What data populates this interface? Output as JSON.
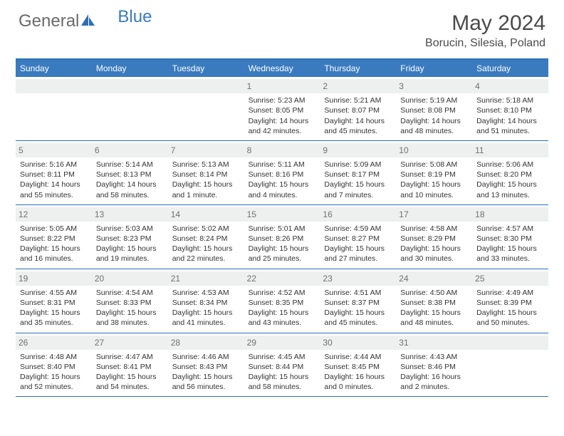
{
  "brand": {
    "part1": "General",
    "part2": "Blue"
  },
  "title": "May 2024",
  "location": "Borucin, Silesia, Poland",
  "colors": {
    "header_bg": "#3a7bbf",
    "rule": "#2d6fb6",
    "daynum_bg": "#eef0f0",
    "text": "#333333",
    "title_text": "#4a4a4a"
  },
  "dow": [
    "Sunday",
    "Monday",
    "Tuesday",
    "Wednesday",
    "Thursday",
    "Friday",
    "Saturday"
  ],
  "weeks": [
    [
      {
        "n": "",
        "sr": "",
        "ss": "",
        "dl": ""
      },
      {
        "n": "",
        "sr": "",
        "ss": "",
        "dl": ""
      },
      {
        "n": "",
        "sr": "",
        "ss": "",
        "dl": ""
      },
      {
        "n": "1",
        "sr": "5:23 AM",
        "ss": "8:05 PM",
        "dl": "14 hours and 42 minutes."
      },
      {
        "n": "2",
        "sr": "5:21 AM",
        "ss": "8:07 PM",
        "dl": "14 hours and 45 minutes."
      },
      {
        "n": "3",
        "sr": "5:19 AM",
        "ss": "8:08 PM",
        "dl": "14 hours and 48 minutes."
      },
      {
        "n": "4",
        "sr": "5:18 AM",
        "ss": "8:10 PM",
        "dl": "14 hours and 51 minutes."
      }
    ],
    [
      {
        "n": "5",
        "sr": "5:16 AM",
        "ss": "8:11 PM",
        "dl": "14 hours and 55 minutes."
      },
      {
        "n": "6",
        "sr": "5:14 AM",
        "ss": "8:13 PM",
        "dl": "14 hours and 58 minutes."
      },
      {
        "n": "7",
        "sr": "5:13 AM",
        "ss": "8:14 PM",
        "dl": "15 hours and 1 minute."
      },
      {
        "n": "8",
        "sr": "5:11 AM",
        "ss": "8:16 PM",
        "dl": "15 hours and 4 minutes."
      },
      {
        "n": "9",
        "sr": "5:09 AM",
        "ss": "8:17 PM",
        "dl": "15 hours and 7 minutes."
      },
      {
        "n": "10",
        "sr": "5:08 AM",
        "ss": "8:19 PM",
        "dl": "15 hours and 10 minutes."
      },
      {
        "n": "11",
        "sr": "5:06 AM",
        "ss": "8:20 PM",
        "dl": "15 hours and 13 minutes."
      }
    ],
    [
      {
        "n": "12",
        "sr": "5:05 AM",
        "ss": "8:22 PM",
        "dl": "15 hours and 16 minutes."
      },
      {
        "n": "13",
        "sr": "5:03 AM",
        "ss": "8:23 PM",
        "dl": "15 hours and 19 minutes."
      },
      {
        "n": "14",
        "sr": "5:02 AM",
        "ss": "8:24 PM",
        "dl": "15 hours and 22 minutes."
      },
      {
        "n": "15",
        "sr": "5:01 AM",
        "ss": "8:26 PM",
        "dl": "15 hours and 25 minutes."
      },
      {
        "n": "16",
        "sr": "4:59 AM",
        "ss": "8:27 PM",
        "dl": "15 hours and 27 minutes."
      },
      {
        "n": "17",
        "sr": "4:58 AM",
        "ss": "8:29 PM",
        "dl": "15 hours and 30 minutes."
      },
      {
        "n": "18",
        "sr": "4:57 AM",
        "ss": "8:30 PM",
        "dl": "15 hours and 33 minutes."
      }
    ],
    [
      {
        "n": "19",
        "sr": "4:55 AM",
        "ss": "8:31 PM",
        "dl": "15 hours and 35 minutes."
      },
      {
        "n": "20",
        "sr": "4:54 AM",
        "ss": "8:33 PM",
        "dl": "15 hours and 38 minutes."
      },
      {
        "n": "21",
        "sr": "4:53 AM",
        "ss": "8:34 PM",
        "dl": "15 hours and 41 minutes."
      },
      {
        "n": "22",
        "sr": "4:52 AM",
        "ss": "8:35 PM",
        "dl": "15 hours and 43 minutes."
      },
      {
        "n": "23",
        "sr": "4:51 AM",
        "ss": "8:37 PM",
        "dl": "15 hours and 45 minutes."
      },
      {
        "n": "24",
        "sr": "4:50 AM",
        "ss": "8:38 PM",
        "dl": "15 hours and 48 minutes."
      },
      {
        "n": "25",
        "sr": "4:49 AM",
        "ss": "8:39 PM",
        "dl": "15 hours and 50 minutes."
      }
    ],
    [
      {
        "n": "26",
        "sr": "4:48 AM",
        "ss": "8:40 PM",
        "dl": "15 hours and 52 minutes."
      },
      {
        "n": "27",
        "sr": "4:47 AM",
        "ss": "8:41 PM",
        "dl": "15 hours and 54 minutes."
      },
      {
        "n": "28",
        "sr": "4:46 AM",
        "ss": "8:43 PM",
        "dl": "15 hours and 56 minutes."
      },
      {
        "n": "29",
        "sr": "4:45 AM",
        "ss": "8:44 PM",
        "dl": "15 hours and 58 minutes."
      },
      {
        "n": "30",
        "sr": "4:44 AM",
        "ss": "8:45 PM",
        "dl": "16 hours and 0 minutes."
      },
      {
        "n": "31",
        "sr": "4:43 AM",
        "ss": "8:46 PM",
        "dl": "16 hours and 2 minutes."
      },
      {
        "n": "",
        "sr": "",
        "ss": "",
        "dl": ""
      }
    ]
  ],
  "labels": {
    "sunrise": "Sunrise:",
    "sunset": "Sunset:",
    "daylight": "Daylight:"
  }
}
